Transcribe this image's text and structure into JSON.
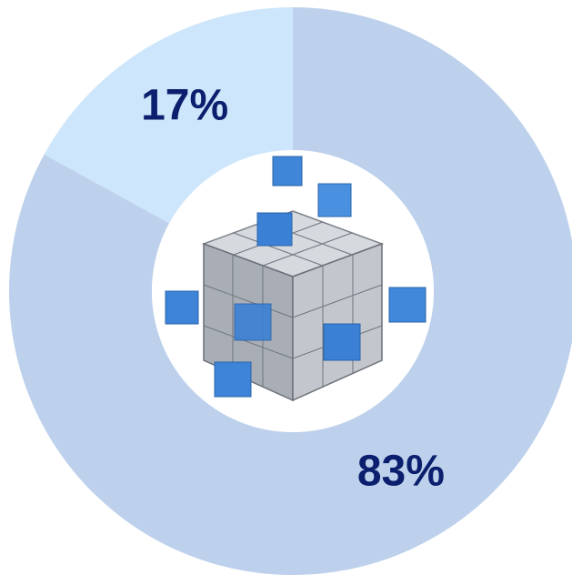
{
  "chart_data": {
    "type": "donut",
    "values": [
      83,
      17
    ],
    "value_labels": [
      "83%",
      "17%"
    ],
    "colors": [
      "#bdd1ec",
      "#cde6fb"
    ],
    "label_color": "#0b1f6e"
  }
}
